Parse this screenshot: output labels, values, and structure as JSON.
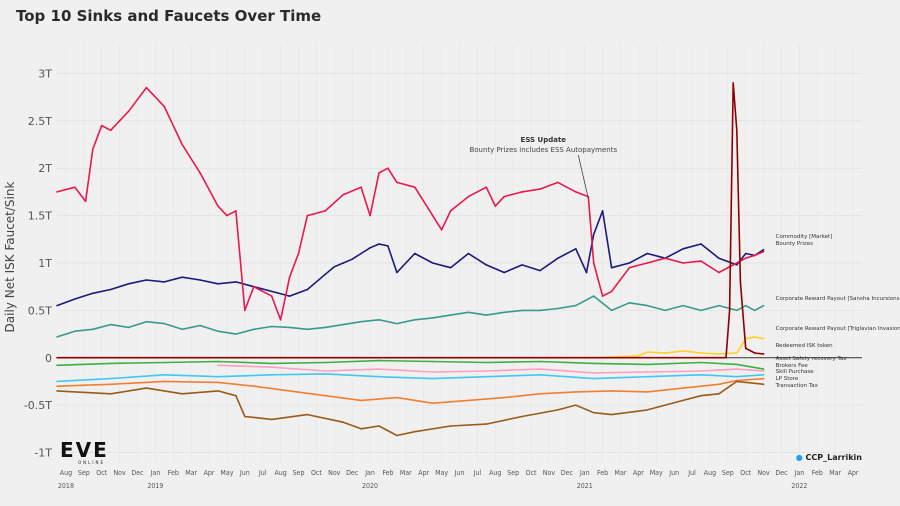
{
  "chart_data": {
    "type": "line",
    "title": "Top 10 Sinks and Faucets Over Time",
    "xlabel": "",
    "ylabel": "Daily Net ISK Faucet/Sink",
    "ylim": [
      -1.1,
      3.3
    ],
    "yticks": [
      {
        "v": 3,
        "label": "3T"
      },
      {
        "v": 2.5,
        "label": "2.5T"
      },
      {
        "v": 2,
        "label": "2T"
      },
      {
        "v": 1.5,
        "label": "1.5T"
      },
      {
        "v": 1,
        "label": "1T"
      },
      {
        "v": 0.5,
        "label": "0.5T"
      },
      {
        "v": 0,
        "label": "0"
      },
      {
        "v": -0.5,
        "label": "-0.5T"
      },
      {
        "v": -1,
        "label": "-1T"
      }
    ],
    "xrange": [
      0,
      45
    ],
    "x_ticks": [
      "Aug",
      "Sep",
      "Oct",
      "Nov",
      "Dec",
      "Jan",
      "Feb",
      "Mar",
      "Apr",
      "May",
      "Jun",
      "Jul",
      "Aug",
      "Sep",
      "Oct",
      "Nov",
      "Dec",
      "Jan",
      "Feb",
      "Mar",
      "Apr",
      "May",
      "Jun",
      "Jul",
      "Aug",
      "Sep",
      "Oct",
      "Nov",
      "Dec",
      "Jan",
      "Feb",
      "Mar",
      "Apr",
      "May",
      "Jun",
      "Jul",
      "Aug",
      "Sep",
      "Oct",
      "Nov",
      "Dec",
      "Jan",
      "Feb",
      "Mar",
      "Apr"
    ],
    "year_labels": [
      {
        "i": 0,
        "label": "2018"
      },
      {
        "i": 5,
        "label": "2019"
      },
      {
        "i": 17,
        "label": "2020"
      },
      {
        "i": 29,
        "label": "2021"
      },
      {
        "i": 41,
        "label": "2022"
      }
    ],
    "series": [
      {
        "name": "Commodity [Market]",
        "color": "#1a1a7a",
        "points": [
          [
            0,
            0.55
          ],
          [
            1,
            0.62
          ],
          [
            2,
            0.68
          ],
          [
            3,
            0.72
          ],
          [
            4,
            0.78
          ],
          [
            5,
            0.82
          ],
          [
            6,
            0.8
          ],
          [
            7,
            0.85
          ],
          [
            8,
            0.82
          ],
          [
            9,
            0.78
          ],
          [
            10,
            0.8
          ],
          [
            11,
            0.75
          ],
          [
            12,
            0.7
          ],
          [
            13,
            0.65
          ],
          [
            14,
            0.72
          ],
          [
            15,
            0.88
          ],
          [
            15.5,
            0.96
          ],
          [
            16,
            1.0
          ],
          [
            16.5,
            1.04
          ],
          [
            17,
            1.1
          ],
          [
            17.5,
            1.16
          ],
          [
            18,
            1.2
          ],
          [
            18.5,
            1.18
          ],
          [
            19,
            0.9
          ],
          [
            20,
            1.1
          ],
          [
            21,
            1.0
          ],
          [
            22,
            0.95
          ],
          [
            23,
            1.1
          ],
          [
            24,
            0.98
          ],
          [
            25,
            0.9
          ],
          [
            26,
            0.98
          ],
          [
            27,
            0.92
          ],
          [
            28,
            1.05
          ],
          [
            29,
            1.15
          ],
          [
            29.6,
            0.9
          ],
          [
            30,
            1.3
          ],
          [
            30.5,
            1.55
          ],
          [
            31,
            0.95
          ],
          [
            32,
            1.0
          ],
          [
            33,
            1.1
          ],
          [
            34,
            1.05
          ],
          [
            35,
            1.15
          ],
          [
            36,
            1.2
          ],
          [
            37,
            1.05
          ],
          [
            38,
            0.98
          ],
          [
            38.5,
            1.1
          ],
          [
            39,
            1.08
          ],
          [
            39.5,
            1.14
          ]
        ]
      },
      {
        "name": "Bounty Prizes",
        "color": "#e8194b",
        "points": [
          [
            0,
            1.75
          ],
          [
            1,
            1.8
          ],
          [
            1.6,
            1.65
          ],
          [
            2,
            2.2
          ],
          [
            2.5,
            2.45
          ],
          [
            3,
            2.4
          ],
          [
            3.5,
            2.5
          ],
          [
            4,
            2.6
          ],
          [
            5,
            2.85
          ],
          [
            6,
            2.65
          ],
          [
            7,
            2.25
          ],
          [
            8,
            1.95
          ],
          [
            9,
            1.6
          ],
          [
            9.5,
            1.5
          ],
          [
            10,
            1.55
          ],
          [
            10.5,
            0.5
          ],
          [
            11,
            0.75
          ],
          [
            12,
            0.65
          ],
          [
            12.5,
            0.4
          ],
          [
            13,
            0.85
          ],
          [
            13.5,
            1.1
          ],
          [
            14,
            1.5
          ],
          [
            15,
            1.55
          ],
          [
            16,
            1.72
          ],
          [
            17,
            1.8
          ],
          [
            17.5,
            1.5
          ],
          [
            18,
            1.95
          ],
          [
            18.5,
            2.0
          ],
          [
            19,
            1.85
          ],
          [
            20,
            1.8
          ],
          [
            21,
            1.5
          ],
          [
            21.5,
            1.35
          ],
          [
            22,
            1.55
          ],
          [
            23,
            1.7
          ],
          [
            24,
            1.8
          ],
          [
            24.5,
            1.6
          ],
          [
            25,
            1.7
          ],
          [
            26,
            1.75
          ],
          [
            27,
            1.78
          ],
          [
            28,
            1.85
          ],
          [
            29,
            1.75
          ],
          [
            29.7,
            1.7
          ],
          [
            30,
            1.0
          ],
          [
            30.5,
            0.65
          ],
          [
            31,
            0.7
          ],
          [
            32,
            0.95
          ],
          [
            33,
            1.0
          ],
          [
            34,
            1.05
          ],
          [
            35,
            1.0
          ],
          [
            36,
            1.02
          ],
          [
            37,
            0.9
          ],
          [
            38,
            1.0
          ],
          [
            38.5,
            1.05
          ],
          [
            39,
            1.08
          ],
          [
            39.5,
            1.12
          ]
        ]
      },
      {
        "name": "Corporate Reward Payout [Sansha Incursions]",
        "color": "#3a9a8a",
        "points": [
          [
            0,
            0.22
          ],
          [
            1,
            0.28
          ],
          [
            2,
            0.3
          ],
          [
            3,
            0.35
          ],
          [
            4,
            0.32
          ],
          [
            5,
            0.38
          ],
          [
            6,
            0.36
          ],
          [
            7,
            0.3
          ],
          [
            8,
            0.34
          ],
          [
            9,
            0.28
          ],
          [
            10,
            0.25
          ],
          [
            11,
            0.3
          ],
          [
            12,
            0.33
          ],
          [
            13,
            0.32
          ],
          [
            14,
            0.3
          ],
          [
            15,
            0.32
          ],
          [
            16,
            0.35
          ],
          [
            17,
            0.38
          ],
          [
            18,
            0.4
          ],
          [
            19,
            0.36
          ],
          [
            20,
            0.4
          ],
          [
            21,
            0.42
          ],
          [
            22,
            0.45
          ],
          [
            23,
            0.48
          ],
          [
            24,
            0.45
          ],
          [
            25,
            0.48
          ],
          [
            26,
            0.5
          ],
          [
            27,
            0.5
          ],
          [
            28,
            0.52
          ],
          [
            29,
            0.55
          ],
          [
            30,
            0.65
          ],
          [
            31,
            0.5
          ],
          [
            32,
            0.58
          ],
          [
            33,
            0.55
          ],
          [
            34,
            0.5
          ],
          [
            35,
            0.55
          ],
          [
            36,
            0.5
          ],
          [
            37,
            0.55
          ],
          [
            38,
            0.5
          ],
          [
            38.5,
            0.55
          ],
          [
            39,
            0.5
          ],
          [
            39.5,
            0.55
          ]
        ]
      },
      {
        "name": "Corporate Reward Payout [Triglavian Invasions]",
        "color": "#ffd21e",
        "points": [
          [
            27,
            0.0
          ],
          [
            30,
            0.0
          ],
          [
            32.5,
            0.02
          ],
          [
            33,
            0.06
          ],
          [
            34,
            0.05
          ],
          [
            35,
            0.07
          ],
          [
            36,
            0.05
          ],
          [
            37,
            0.04
          ],
          [
            38,
            0.05
          ],
          [
            38.5,
            0.2
          ],
          [
            39,
            0.22
          ],
          [
            39.5,
            0.2
          ]
        ]
      },
      {
        "name": "Redeemed ISK token",
        "color": "#8b0000",
        "points": [
          [
            0,
            0
          ],
          [
            37.4,
            0
          ],
          [
            37.6,
            0.5
          ],
          [
            37.8,
            2.9
          ],
          [
            38,
            2.4
          ],
          [
            38.2,
            0.8
          ],
          [
            38.5,
            0.1
          ],
          [
            39,
            0.05
          ],
          [
            39.5,
            0.04
          ]
        ]
      },
      {
        "name": "Asset Safety recovery Tax",
        "color": "#3cb043",
        "points": [
          [
            0,
            -0.08
          ],
          [
            3,
            -0.06
          ],
          [
            6,
            -0.05
          ],
          [
            9,
            -0.04
          ],
          [
            12,
            -0.06
          ],
          [
            15,
            -0.05
          ],
          [
            18,
            -0.03
          ],
          [
            21,
            -0.04
          ],
          [
            24,
            -0.05
          ],
          [
            27,
            -0.04
          ],
          [
            30,
            -0.06
          ],
          [
            33,
            -0.07
          ],
          [
            36,
            -0.05
          ],
          [
            38,
            -0.07
          ],
          [
            39.5,
            -0.12
          ]
        ]
      },
      {
        "name": "Brokers Fee",
        "color": "#ff9ec4",
        "points": [
          [
            9,
            -0.08
          ],
          [
            12,
            -0.1
          ],
          [
            15,
            -0.14
          ],
          [
            18,
            -0.12
          ],
          [
            21,
            -0.15
          ],
          [
            24,
            -0.14
          ],
          [
            27,
            -0.12
          ],
          [
            30,
            -0.16
          ],
          [
            33,
            -0.15
          ],
          [
            36,
            -0.14
          ],
          [
            38,
            -0.12
          ],
          [
            39.5,
            -0.14
          ]
        ]
      },
      {
        "name": "Skill Purchase",
        "color": "#40c8f0",
        "points": [
          [
            0,
            -0.25
          ],
          [
            3,
            -0.22
          ],
          [
            6,
            -0.18
          ],
          [
            9,
            -0.2
          ],
          [
            12,
            -0.18
          ],
          [
            15,
            -0.17
          ],
          [
            18,
            -0.2
          ],
          [
            21,
            -0.22
          ],
          [
            24,
            -0.2
          ],
          [
            27,
            -0.18
          ],
          [
            30,
            -0.22
          ],
          [
            33,
            -0.2
          ],
          [
            36,
            -0.18
          ],
          [
            38,
            -0.2
          ],
          [
            39.5,
            -0.18
          ]
        ]
      },
      {
        "name": "LP Store",
        "color": "#f08030",
        "points": [
          [
            0,
            -0.3
          ],
          [
            3,
            -0.28
          ],
          [
            6,
            -0.25
          ],
          [
            9,
            -0.26
          ],
          [
            11,
            -0.3
          ],
          [
            13,
            -0.35
          ],
          [
            15,
            -0.4
          ],
          [
            17,
            -0.45
          ],
          [
            19,
            -0.42
          ],
          [
            21,
            -0.48
          ],
          [
            23,
            -0.45
          ],
          [
            25,
            -0.42
          ],
          [
            27,
            -0.38
          ],
          [
            29,
            -0.36
          ],
          [
            31,
            -0.35
          ],
          [
            33,
            -0.36
          ],
          [
            35,
            -0.32
          ],
          [
            37,
            -0.28
          ],
          [
            38,
            -0.24
          ],
          [
            39.5,
            -0.22
          ]
        ]
      },
      {
        "name": "Transaction Tax",
        "color": "#9a5a1a",
        "points": [
          [
            0,
            -0.35
          ],
          [
            3,
            -0.38
          ],
          [
            5,
            -0.32
          ],
          [
            7,
            -0.38
          ],
          [
            9,
            -0.35
          ],
          [
            10,
            -0.4
          ],
          [
            10.5,
            -0.62
          ],
          [
            12,
            -0.65
          ],
          [
            14,
            -0.6
          ],
          [
            16,
            -0.68
          ],
          [
            17,
            -0.75
          ],
          [
            18,
            -0.72
          ],
          [
            19,
            -0.82
          ],
          [
            20,
            -0.78
          ],
          [
            22,
            -0.72
          ],
          [
            24,
            -0.7
          ],
          [
            26,
            -0.62
          ],
          [
            28,
            -0.55
          ],
          [
            29,
            -0.5
          ],
          [
            30,
            -0.58
          ],
          [
            31,
            -0.6
          ],
          [
            33,
            -0.55
          ],
          [
            35,
            -0.45
          ],
          [
            36,
            -0.4
          ],
          [
            37,
            -0.38
          ],
          [
            38,
            -0.25
          ],
          [
            39.5,
            -0.28
          ]
        ]
      }
    ],
    "labels": [
      {
        "text": "Commodity [Market]",
        "y": 1.14
      },
      {
        "text": "Bounty Prizes",
        "y": 1.08
      },
      {
        "text": "Corporate Reward Payout [Sansha Incursions]",
        "y": 0.55
      },
      {
        "text": "Corporate Reward Payout [Triglavian Invasions]",
        "y": 0.22
      },
      {
        "text": "Redeemed ISK token",
        "y": 0.05
      },
      {
        "text": "Asset Safety recovery Tax",
        "y": -0.08
      },
      {
        "text": "Brokers Fee",
        "y": -0.15
      },
      {
        "text": "Skill Purchase",
        "y": -0.2
      },
      {
        "text": "LP Store",
        "y": -0.28
      },
      {
        "text": "Transaction Tax",
        "y": -0.35
      }
    ],
    "annotation": {
      "title": "ESS Update",
      "text": "Bounty Prizes includes ESS Autopayments",
      "x": 29.7,
      "y": 1.7
    }
  },
  "branding": {
    "logo": "EVE",
    "logo_sub": "ONLINE",
    "twitter": "@CCP_Larrikin",
    "twitter_handle": "CCP_Larrikin"
  }
}
